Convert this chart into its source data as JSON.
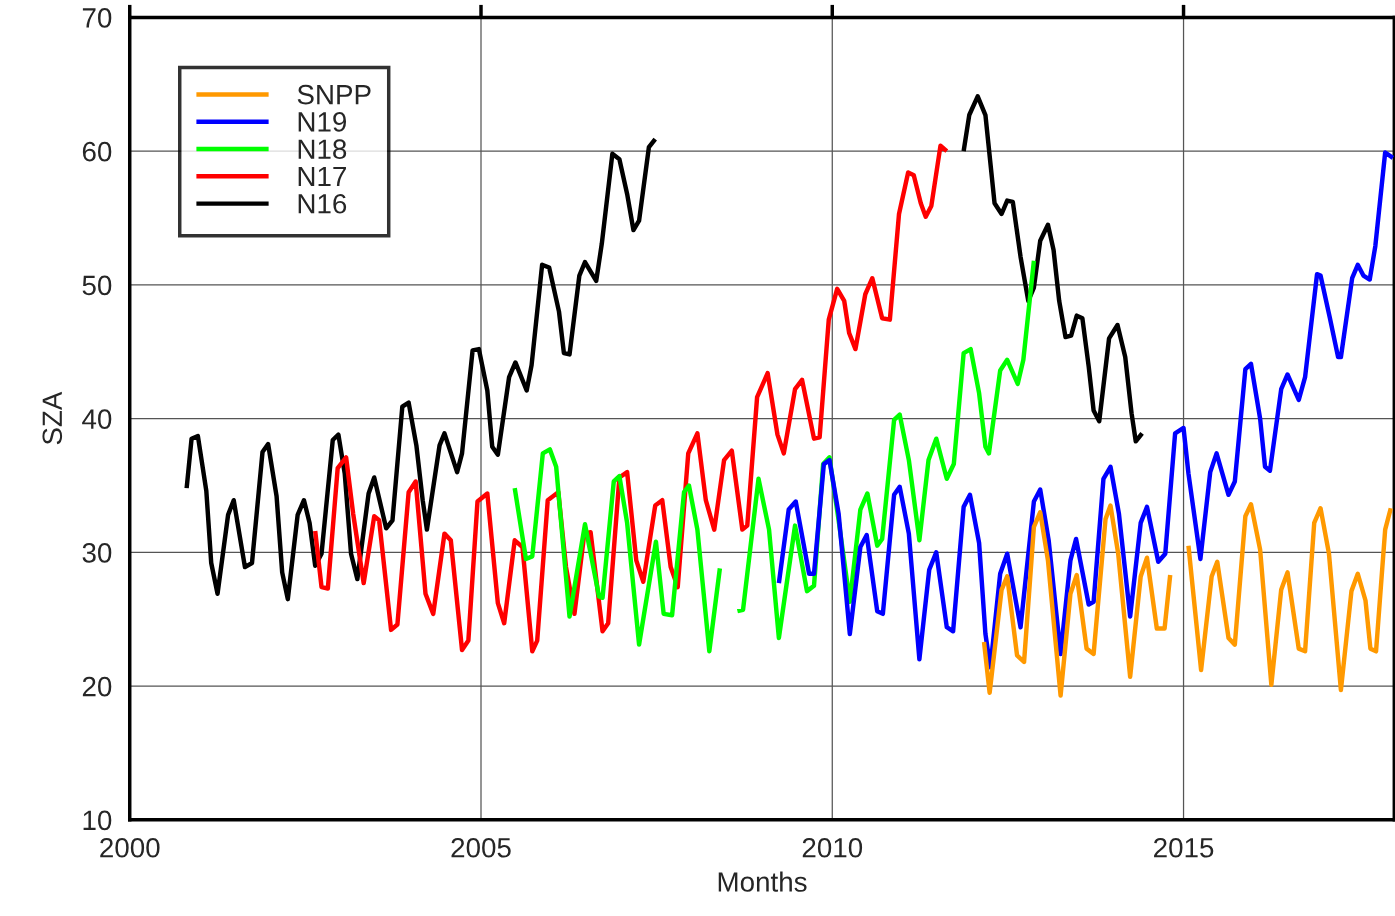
{
  "chart_data": {
    "type": "line",
    "xlabel": "Months",
    "ylabel": "SZA",
    "xlim": [
      2000,
      2018
    ],
    "xticks": [
      2000,
      2005,
      2010,
      2015
    ],
    "ylim": [
      10,
      70
    ],
    "yticks": [
      10,
      20,
      30,
      40,
      50,
      60,
      70
    ],
    "grid": true,
    "legend": "top left",
    "marker": "none",
    "line_style": "solid",
    "series": [
      {
        "name": "SNPP",
        "color": "#ff9900",
        "x": [
          2012.16,
          2012.24,
          2012.41,
          2012.49,
          2012.63,
          2012.73,
          2012.87,
          2012.96,
          2013.07,
          2013.25,
          2013.39,
          2013.48,
          2013.62,
          2013.72,
          2013.89,
          2013.96,
          2014.07,
          2014.24,
          2014.39,
          2014.48,
          2014.62,
          2014.73,
          2014.81,
          2014.95,
          2015.07,
          2015.25,
          2015.4,
          2015.48,
          2015.64,
          2015.73,
          2015.88,
          2015.96,
          2016.09,
          2016.25,
          2016.39,
          2016.48,
          2016.64,
          2016.73,
          2016.86,
          2016.95,
          2017.07,
          2017.24,
          2017.39,
          2017.48,
          2017.59,
          2017.66,
          2017.74,
          2017.87,
          2017.95
        ],
        "values": [
          23.3,
          19.5,
          27.2,
          28.2,
          22.3,
          21.8,
          31.9,
          33.0,
          29.4,
          19.3,
          26.9,
          28.3,
          22.8,
          22.4,
          32.5,
          33.5,
          29.9,
          20.7,
          28.2,
          29.6,
          24.3,
          24.3,
          28.3,
          null,
          30.5,
          21.2,
          28.2,
          29.3,
          23.6,
          23.1,
          32.7,
          33.6,
          30.2,
          20.1,
          27.2,
          28.5,
          22.8,
          22.6,
          32.2,
          33.3,
          29.9,
          19.7,
          27.1,
          28.4,
          26.4,
          22.8,
          22.6,
          31.7,
          33.3
        ]
      },
      {
        "name": "N19",
        "color": "#0000ff",
        "x": [
          2009.24,
          2009.38,
          2009.48,
          2009.67,
          2009.74,
          2009.88,
          2009.96,
          2010.09,
          2010.25,
          2010.4,
          2010.49,
          2010.64,
          2010.72,
          2010.88,
          2010.96,
          2011.09,
          2011.24,
          2011.38,
          2011.48,
          2011.63,
          2011.72,
          2011.87,
          2011.96,
          2012.09,
          2012.18,
          2012.25,
          2012.39,
          2012.49,
          2012.68,
          2012.87,
          2012.96,
          2013.08,
          2013.25,
          2013.39,
          2013.47,
          2013.65,
          2013.72,
          2013.86,
          2013.96,
          2014.08,
          2014.24,
          2014.39,
          2014.48,
          2014.64,
          2014.74,
          2014.88,
          2015.0,
          2015.07,
          2015.24,
          2015.38,
          2015.47,
          2015.64,
          2015.73,
          2015.88,
          2015.96,
          2016.09,
          2016.16,
          2016.23,
          2016.39,
          2016.48,
          2016.64,
          2016.73,
          2016.9,
          2016.95,
          2017.08,
          2017.2,
          2017.24,
          2017.4,
          2017.48,
          2017.56,
          2017.65,
          2017.73,
          2017.87,
          2017.98
        ],
        "values": [
          27.7,
          33.2,
          33.8,
          28.4,
          28.4,
          36.6,
          36.9,
          32.9,
          23.9,
          30.4,
          31.3,
          25.6,
          25.4,
          34.3,
          34.9,
          31.4,
          22.0,
          28.7,
          30.0,
          24.4,
          24.1,
          33.4,
          34.3,
          30.7,
          23.9,
          21.4,
          28.4,
          29.9,
          24.4,
          33.8,
          34.7,
          30.9,
          22.4,
          29.4,
          31.0,
          26.1,
          26.3,
          35.5,
          36.4,
          32.9,
          25.2,
          32.2,
          33.4,
          29.3,
          29.9,
          38.9,
          39.3,
          35.9,
          29.5,
          36.0,
          37.4,
          34.3,
          35.3,
          43.7,
          44.1,
          40.0,
          36.4,
          36.1,
          42.2,
          43.3,
          41.4,
          43.1,
          50.8,
          50.7,
          47.6,
          44.6,
          44.6,
          50.5,
          51.5,
          50.7,
          50.4,
          52.9,
          59.9,
          59.5
        ]
      },
      {
        "name": "N18",
        "color": "#00ff00",
        "x": [
          2005.48,
          2005.64,
          2005.73,
          2005.88,
          2005.98,
          2006.07,
          2006.26,
          2006.48,
          2006.68,
          2006.73,
          2006.89,
          2006.97,
          2007.08,
          2007.25,
          2007.49,
          2007.6,
          2007.72,
          2007.89,
          2007.96,
          2008.08,
          2008.25,
          2008.4,
          2008.52,
          2008.65,
          2008.73,
          2008.95,
          2009.1,
          2009.24,
          2009.47,
          2009.64,
          2009.74,
          2009.87,
          2009.96,
          2010.09,
          2010.25,
          2010.4,
          2010.5,
          2010.64,
          2010.71,
          2010.88,
          2010.96,
          2011.09,
          2011.24,
          2011.37,
          2011.48,
          2011.63,
          2011.73,
          2011.87,
          2011.97,
          2012.09,
          2012.18,
          2012.23,
          2012.39,
          2012.49,
          2012.64,
          2012.72,
          2012.87
        ],
        "values": [
          34.8,
          29.5,
          29.7,
          37.4,
          37.7,
          36.4,
          25.2,
          32.1,
          26.7,
          26.6,
          35.3,
          35.7,
          32.2,
          23.1,
          30.8,
          25.4,
          25.3,
          34.5,
          35.0,
          31.7,
          22.6,
          28.8,
          null,
          25.6,
          25.7,
          35.5,
          31.7,
          23.6,
          32.0,
          27.1,
          27.5,
          36.6,
          37.1,
          32.4,
          26.3,
          33.2,
          34.4,
          30.5,
          31.0,
          39.9,
          40.3,
          36.9,
          30.9,
          36.9,
          38.5,
          35.5,
          36.6,
          44.9,
          45.2,
          41.9,
          37.9,
          37.4,
          43.6,
          44.4,
          42.6,
          44.4,
          51.8
        ]
      },
      {
        "name": "N17",
        "color": "#ff0000",
        "x": [
          2002.64,
          2002.73,
          2002.82,
          2002.96,
          2003.08,
          2003.18,
          2003.33,
          2003.48,
          2003.55,
          2003.72,
          2003.81,
          2003.97,
          2004.07,
          2004.21,
          2004.32,
          2004.48,
          2004.57,
          2004.73,
          2004.82,
          2004.95,
          2005.09,
          2005.24,
          2005.33,
          2005.48,
          2005.59,
          2005.73,
          2005.8,
          2005.95,
          2006.1,
          2006.21,
          2006.33,
          2006.47,
          2006.56,
          2006.73,
          2006.81,
          2006.97,
          2007.08,
          2007.21,
          2007.31,
          2007.48,
          2007.58,
          2007.7,
          2007.8,
          2007.95,
          2008.08,
          2008.2,
          2008.32,
          2008.46,
          2008.57,
          2008.72,
          2008.79,
          2008.93,
          2009.08,
          2009.22,
          2009.31,
          2009.47,
          2009.57,
          2009.74,
          2009.82,
          2009.95,
          2010.07,
          2010.17,
          2010.24,
          2010.33,
          2010.47,
          2010.57,
          2010.71,
          2010.82,
          2010.95,
          2011.08,
          2011.16,
          2011.26,
          2011.33,
          2011.41,
          2011.54,
          2011.63
        ],
        "values": [
          31.6,
          27.4,
          27.3,
          36.3,
          37.1,
          32.9,
          27.7,
          32.7,
          32.4,
          24.2,
          24.6,
          34.5,
          35.3,
          26.9,
          25.4,
          31.4,
          30.9,
          22.7,
          23.4,
          33.8,
          34.4,
          26.2,
          24.7,
          30.9,
          30.4,
          22.6,
          23.4,
          33.9,
          34.5,
          28.9,
          25.4,
          31.4,
          31.5,
          24.1,
          24.7,
          35.6,
          36.0,
          29.4,
          27.8,
          33.5,
          33.9,
          28.9,
          27.4,
          37.4,
          38.9,
          33.9,
          31.7,
          36.9,
          37.6,
          31.7,
          32.0,
          41.6,
          43.4,
          38.8,
          37.4,
          42.2,
          42.9,
          38.5,
          38.6,
          47.4,
          49.7,
          48.8,
          46.4,
          45.2,
          49.3,
          50.5,
          47.5,
          47.4,
          55.3,
          58.4,
          58.2,
          56.1,
          55.1,
          55.9,
          60.4,
          60.0
        ]
      },
      {
        "name": "N16",
        "color": "#000000",
        "x": [
          2000.81,
          2000.88,
          2000.97,
          2001.09,
          2001.16,
          2001.25,
          2001.4,
          2001.48,
          2001.64,
          2001.74,
          2001.89,
          2001.97,
          2002.09,
          2002.17,
          2002.25,
          2002.39,
          2002.48,
          2002.56,
          2002.64,
          2002.73,
          2002.89,
          2002.97,
          2003.06,
          2003.15,
          2003.24,
          2003.4,
          2003.48,
          2003.65,
          2003.74,
          2003.88,
          2003.97,
          2004.08,
          2004.17,
          2004.23,
          2004.41,
          2004.48,
          2004.66,
          2004.73,
          2004.88,
          2004.97,
          2005.09,
          2005.16,
          2005.24,
          2005.4,
          2005.49,
          2005.65,
          2005.72,
          2005.87,
          2005.97,
          2006.11,
          2006.18,
          2006.26,
          2006.4,
          2006.48,
          2006.64,
          2006.72,
          2006.87,
          2006.97,
          2007.08,
          2007.17,
          2007.25,
          2007.39,
          2007.48,
          2009.7,
          2011.87,
          2011.95,
          2012.07,
          2012.18,
          2012.31,
          2012.41,
          2012.49,
          2012.57,
          2012.68,
          2012.79,
          2012.87,
          2012.96,
          2013.07,
          2013.15,
          2013.23,
          2013.32,
          2013.4,
          2013.48,
          2013.56,
          2013.65,
          2013.72,
          2013.8,
          2013.94,
          2014.06,
          2014.17,
          2014.26,
          2014.32,
          2014.41
        ],
        "values": [
          34.8,
          38.5,
          38.7,
          34.6,
          29.2,
          26.9,
          32.8,
          33.9,
          28.9,
          29.2,
          37.5,
          38.1,
          34.2,
          28.5,
          26.5,
          32.8,
          33.9,
          32.2,
          29.0,
          29.9,
          38.4,
          38.8,
          35.9,
          29.9,
          28.0,
          34.4,
          35.6,
          31.8,
          32.4,
          40.9,
          41.2,
          38.0,
          33.9,
          31.7,
          38.0,
          38.9,
          36.0,
          37.4,
          45.1,
          45.2,
          42.1,
          37.9,
          37.3,
          43.1,
          44.2,
          42.1,
          44.0,
          51.5,
          51.3,
          48.0,
          44.9,
          44.8,
          50.7,
          51.7,
          50.3,
          53.1,
          59.8,
          59.4,
          56.8,
          54.1,
          54.8,
          60.3,
          60.9,
          null,
          60.0,
          62.7,
          64.1,
          62.7,
          56.1,
          55.3,
          56.3,
          56.2,
          52.1,
          48.8,
          49.8,
          53.3,
          54.5,
          52.6,
          48.8,
          46.1,
          46.2,
          47.7,
          47.5,
          43.9,
          40.6,
          39.8,
          46.0,
          47.0,
          44.6,
          40.4,
          38.3,
          38.9
        ]
      }
    ]
  }
}
